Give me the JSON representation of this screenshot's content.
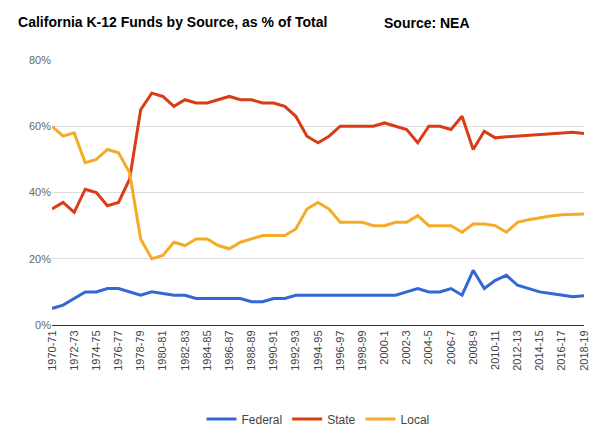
{
  "chart_data": {
    "type": "line",
    "title": "California K-12 Funds by Source, as % of Total",
    "annotations": [
      {
        "text": "Source: NEA"
      }
    ],
    "categories": [
      "1970-71",
      null,
      "1972-73",
      null,
      "1974-75",
      null,
      "1976-77",
      null,
      "1978-79",
      null,
      "1980-81",
      null,
      "1982-83",
      null,
      "1984-85",
      null,
      "1986-87",
      null,
      "1988-89",
      null,
      "1990-91",
      null,
      "1992-93",
      null,
      "1994-95",
      null,
      "1996-97",
      null,
      "1998-99",
      null,
      "2000-1",
      null,
      "2002-3",
      null,
      "2004-5",
      null,
      "2006-7",
      null,
      "2008-9",
      null,
      "2010-11",
      null,
      "2012-13",
      null,
      "2014-15",
      null,
      "2016-17",
      null,
      "2018-19"
    ],
    "series": [
      {
        "name": "Federal",
        "color": "#3367d6",
        "values": [
          5,
          6,
          8,
          10,
          10,
          11,
          11,
          10,
          9,
          10,
          9.5,
          9,
          9,
          8,
          8,
          8,
          8,
          8,
          7,
          7,
          8,
          8,
          9,
          9,
          9,
          9,
          9,
          9,
          9,
          9,
          9,
          9,
          10,
          11,
          10,
          10,
          11,
          9,
          16.5,
          11,
          13.5,
          15,
          12,
          11,
          10,
          9.5,
          9,
          8.5,
          8.8
        ]
      },
      {
        "name": "State",
        "color": "#d93c16",
        "values": [
          35,
          37,
          34,
          41,
          40,
          36,
          37,
          44,
          65,
          70,
          69,
          66,
          68,
          67,
          67,
          68,
          69,
          68,
          68,
          67,
          67,
          66,
          63,
          57,
          55,
          57,
          60,
          60,
          60,
          60,
          61,
          60,
          59,
          55,
          60,
          60,
          59,
          63,
          53,
          58.5,
          56.5,
          56.8,
          57,
          57.3,
          57.6,
          57.8,
          58,
          58.2,
          57.8
        ]
      },
      {
        "name": "Local",
        "color": "#f4ab27",
        "values": [
          60,
          57,
          58,
          49,
          50,
          53,
          52,
          46,
          26,
          20,
          21,
          25,
          24,
          26,
          26,
          24,
          23,
          25,
          26,
          27,
          27,
          27,
          29,
          35,
          37,
          35,
          31,
          31,
          31,
          30,
          30,
          31,
          31,
          33,
          30,
          30,
          30,
          28,
          30.5,
          30.5,
          30,
          28,
          31,
          31.8,
          32.4,
          32.9,
          33.3,
          33.5,
          33.5
        ]
      }
    ],
    "ylim": [
      0,
      80
    ],
    "yticks": [
      {
        "value": 0,
        "label": "0%"
      },
      {
        "value": 20,
        "label": "20%"
      },
      {
        "value": 40,
        "label": "40%"
      },
      {
        "value": 60,
        "label": "60%"
      },
      {
        "value": 80,
        "label": "80%"
      }
    ],
    "grid": true,
    "legend": "bottom"
  }
}
